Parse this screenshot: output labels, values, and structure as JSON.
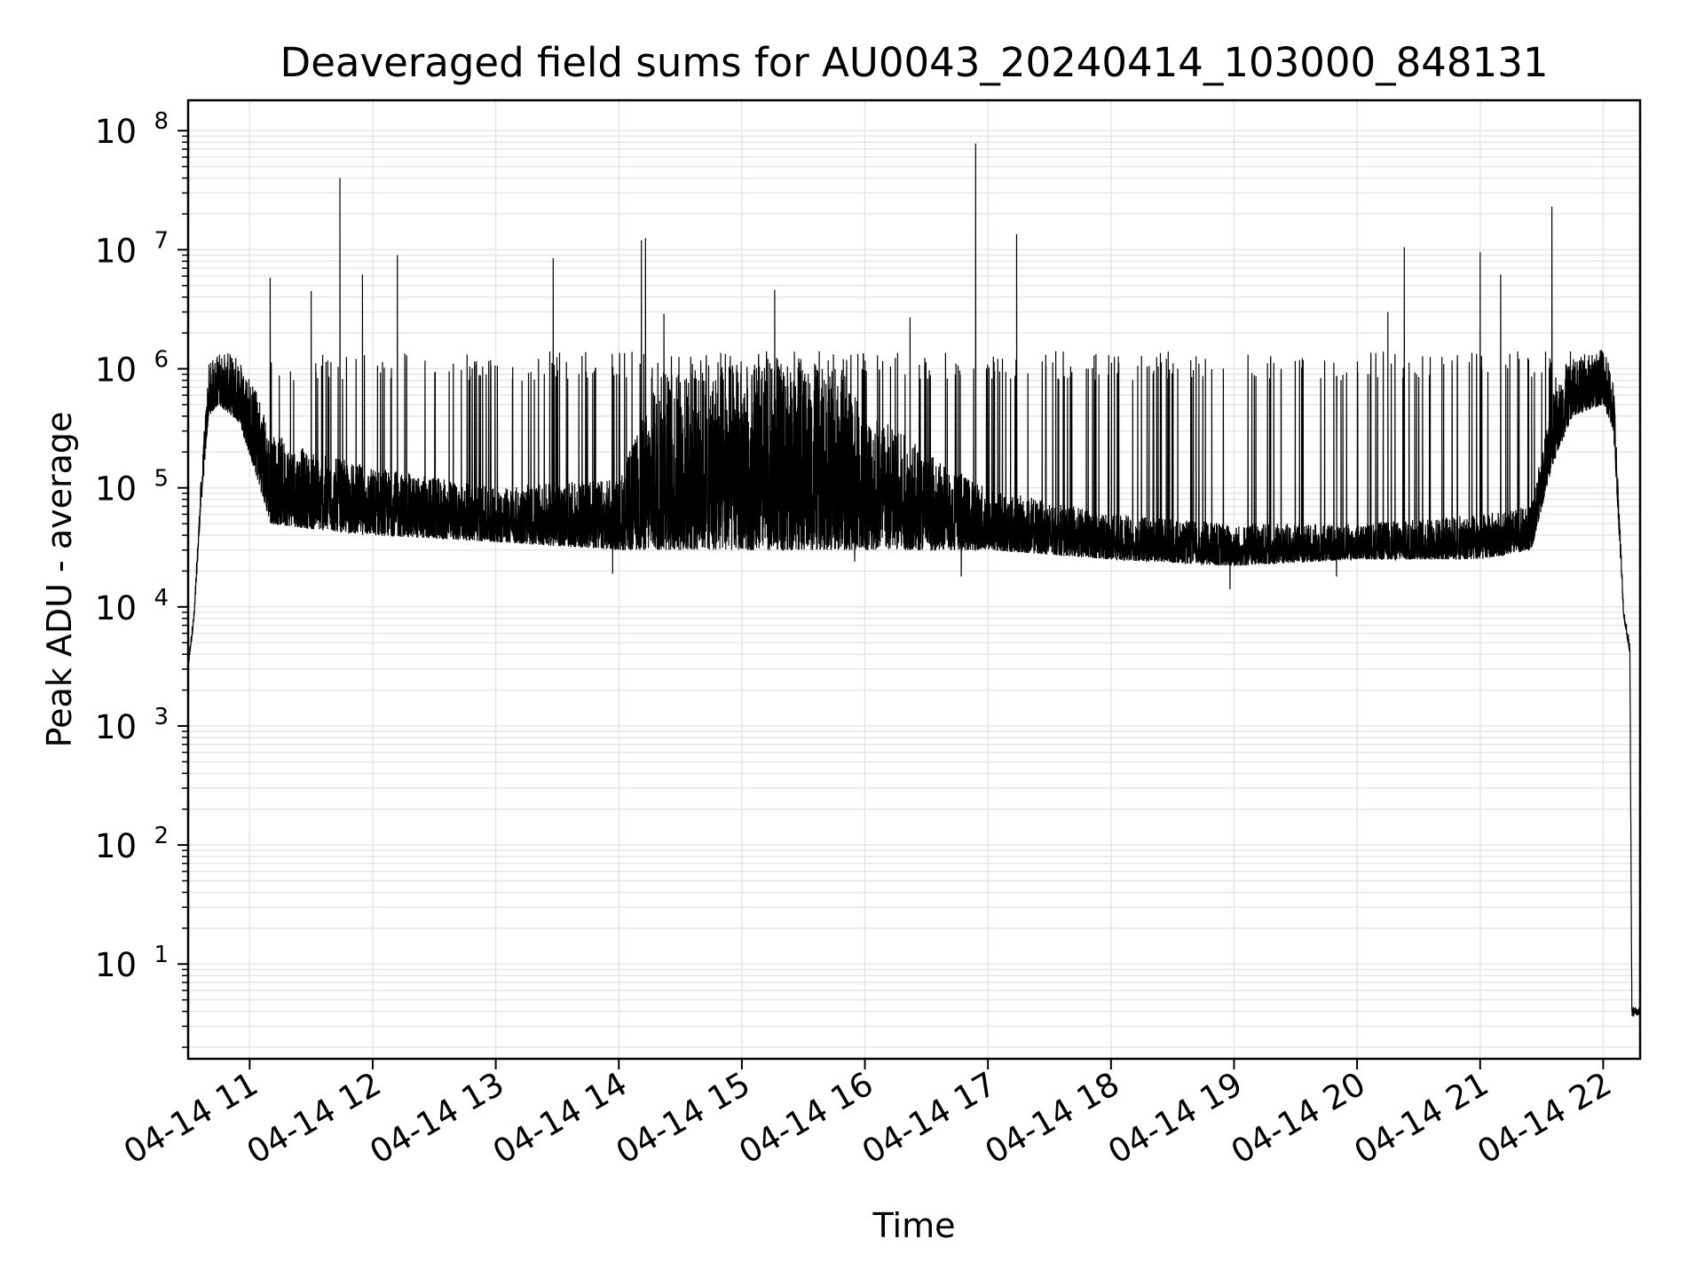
{
  "chart_data": {
    "type": "line",
    "title": "Deaveraged field sums for AU0043_20240414_103000_848131",
    "xlabel": "Time",
    "ylabel": "Peak ADU - average",
    "yscale": "log",
    "ylim": [
      1.6,
      180000000
    ],
    "xlim": [
      "2024-04-14 10:30",
      "2024-04-14 22:18"
    ],
    "grid": true,
    "line_color": "#000000",
    "grid_color": "#e6e6e6",
    "x_ticks": [
      {
        "t": "2024-04-14 11:00",
        "label": "04-14 11"
      },
      {
        "t": "2024-04-14 12:00",
        "label": "04-14 12"
      },
      {
        "t": "2024-04-14 13:00",
        "label": "04-14 13"
      },
      {
        "t": "2024-04-14 14:00",
        "label": "04-14 14"
      },
      {
        "t": "2024-04-14 15:00",
        "label": "04-14 15"
      },
      {
        "t": "2024-04-14 16:00",
        "label": "04-14 16"
      },
      {
        "t": "2024-04-14 17:00",
        "label": "04-14 17"
      },
      {
        "t": "2024-04-14 18:00",
        "label": "04-14 18"
      },
      {
        "t": "2024-04-14 19:00",
        "label": "04-14 19"
      },
      {
        "t": "2024-04-14 20:00",
        "label": "04-14 20"
      },
      {
        "t": "2024-04-14 21:00",
        "label": "04-14 21"
      },
      {
        "t": "2024-04-14 22:00",
        "label": "04-14 22"
      }
    ],
    "y_ticks": [
      {
        "value": 10,
        "base": "10",
        "exp": "1"
      },
      {
        "value": 100,
        "base": "10",
        "exp": "2"
      },
      {
        "value": 1000,
        "base": "10",
        "exp": "3"
      },
      {
        "value": 10000,
        "base": "10",
        "exp": "4"
      },
      {
        "value": 100000,
        "base": "10",
        "exp": "5"
      },
      {
        "value": 1000000,
        "base": "10",
        "exp": "6"
      },
      {
        "value": 10000000,
        "base": "10",
        "exp": "7"
      },
      {
        "value": 100000000,
        "base": "10",
        "exp": "8"
      }
    ],
    "envelope": [
      {
        "t": "2024-04-14 10:30",
        "low": 3000,
        "high": 3500
      },
      {
        "t": "2024-04-14 10:33",
        "low": 8000,
        "high": 10000
      },
      {
        "t": "2024-04-14 10:36",
        "low": 60000,
        "high": 100000
      },
      {
        "t": "2024-04-14 10:40",
        "low": 400000,
        "high": 1100000
      },
      {
        "t": "2024-04-14 10:45",
        "low": 500000,
        "high": 1400000
      },
      {
        "t": "2024-04-14 10:55",
        "low": 350000,
        "high": 1300000
      },
      {
        "t": "2024-04-14 11:05",
        "low": 100000,
        "high": 600000
      },
      {
        "t": "2024-04-14 11:10",
        "low": 50000,
        "high": 300000
      },
      {
        "t": "2024-04-14 11:30",
        "low": 45000,
        "high": 200000
      },
      {
        "t": "2024-04-14 12:00",
        "low": 40000,
        "high": 150000
      },
      {
        "t": "2024-04-14 13:00",
        "low": 35000,
        "high": 100000
      },
      {
        "t": "2024-04-14 14:00",
        "low": 30000,
        "high": 120000
      },
      {
        "t": "2024-04-14 14:20",
        "low": 30000,
        "high": 900000
      },
      {
        "t": "2024-04-14 15:00",
        "low": 30000,
        "high": 1200000
      },
      {
        "t": "2024-04-14 15:40",
        "low": 30000,
        "high": 1000000
      },
      {
        "t": "2024-04-14 16:30",
        "low": 30000,
        "high": 200000
      },
      {
        "t": "2024-04-14 17:00",
        "low": 30000,
        "high": 100000
      },
      {
        "t": "2024-04-14 18:00",
        "low": 25000,
        "high": 60000
      },
      {
        "t": "2024-04-14 19:00",
        "low": 22000,
        "high": 50000
      },
      {
        "t": "2024-04-14 20:00",
        "low": 25000,
        "high": 50000
      },
      {
        "t": "2024-04-14 21:00",
        "low": 25000,
        "high": 60000
      },
      {
        "t": "2024-04-14 21:25",
        "low": 30000,
        "high": 70000
      },
      {
        "t": "2024-04-14 21:35",
        "low": 150000,
        "high": 600000
      },
      {
        "t": "2024-04-14 21:45",
        "low": 400000,
        "high": 1200000
      },
      {
        "t": "2024-04-14 22:00",
        "low": 500000,
        "high": 1500000
      },
      {
        "t": "2024-04-14 22:05",
        "low": 300000,
        "high": 900000
      },
      {
        "t": "2024-04-14 22:10",
        "low": 8000,
        "high": 10000
      },
      {
        "t": "2024-04-14 22:13",
        "low": 4000,
        "high": 5000
      },
      {
        "t": "2024-04-14 22:14",
        "low": 3.5,
        "high": 4.5
      },
      {
        "t": "2024-04-14 22:18",
        "low": 3.8,
        "high": 4.3
      }
    ],
    "spikes": [
      {
        "t": "2024-04-14 11:10",
        "value": 5800000
      },
      {
        "t": "2024-04-14 11:30",
        "value": 4500000
      },
      {
        "t": "2024-04-14 11:44",
        "value": 40000000
      },
      {
        "t": "2024-04-14 11:55",
        "value": 6200000
      },
      {
        "t": "2024-04-14 12:12",
        "value": 9000000
      },
      {
        "t": "2024-04-14 13:28",
        "value": 8500000
      },
      {
        "t": "2024-04-14 14:11",
        "value": 12000000
      },
      {
        "t": "2024-04-14 14:13",
        "value": 12500000
      },
      {
        "t": "2024-04-14 14:22",
        "value": 2900000
      },
      {
        "t": "2024-04-14 15:16",
        "value": 4600000
      },
      {
        "t": "2024-04-14 16:22",
        "value": 2700000
      },
      {
        "t": "2024-04-14 16:54",
        "value": 78000000
      },
      {
        "t": "2024-04-14 17:14",
        "value": 13500000
      },
      {
        "t": "2024-04-14 20:15",
        "value": 3000000
      },
      {
        "t": "2024-04-14 20:23",
        "value": 10500000
      },
      {
        "t": "2024-04-14 21:00",
        "value": 9500000
      },
      {
        "t": "2024-04-14 21:10",
        "value": 6200000
      },
      {
        "t": "2024-04-14 21:35",
        "value": 23000000
      }
    ],
    "dips": [
      {
        "t": "2024-04-14 13:57",
        "value": 19000
      },
      {
        "t": "2024-04-14 15:55",
        "value": 24000
      },
      {
        "t": "2024-04-14 16:47",
        "value": 18000
      },
      {
        "t": "2024-04-14 18:58",
        "value": 14000
      },
      {
        "t": "2024-04-14 19:50",
        "value": 18000
      }
    ]
  }
}
